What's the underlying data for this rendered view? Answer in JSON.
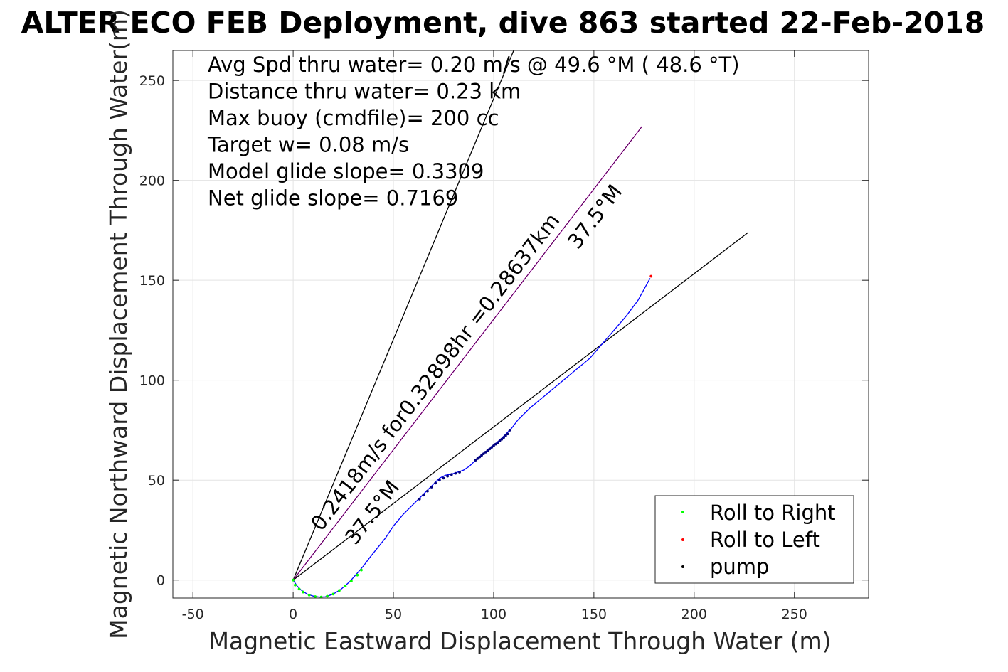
{
  "chart_data": {
    "type": "scatter",
    "title": "ALTER ECO FEB Deployment, dive 863 started 22-Feb-2018",
    "xlabel": "Magnetic Eastward Displacement Through Water (m)",
    "ylabel": "Magnetic Northward Displacement Through Water(m)",
    "xlim": [
      -60,
      287
    ],
    "ylim": [
      -9,
      265
    ],
    "xticks": [
      -50,
      0,
      50,
      100,
      150,
      200,
      250
    ],
    "yticks": [
      0,
      50,
      100,
      150,
      200,
      250
    ],
    "xtick_labels": [
      "-50",
      "0",
      "50",
      "100",
      "150",
      "200",
      "250"
    ],
    "ytick_labels": [
      "0",
      "50",
      "100",
      "150",
      "200",
      "250"
    ],
    "grid": true,
    "legend_position": "bottom-right",
    "colors": {
      "track": "#0000ff",
      "roll_right": "#00ff00",
      "roll_left": "#ff0000",
      "pump": "#000080",
      "heading_line": "#cc00cc",
      "ref_lines": "#000000"
    },
    "stats_text": [
      "Avg Spd thru water=  0.20 m/s @  49.6 °M ( 48.6 °T)",
      "Distance thru water=  0.23 km",
      "Max buoy (cmdfile)= 200 cc",
      "Target w= 0.08 m/s",
      "Model glide slope= 0.3309",
      "Net glide slope= 0.7169"
    ],
    "annotations": [
      {
        "text": "0.2418m/s for0.32898hr =0.28637km",
        "x": 14,
        "y": 24,
        "angle": -52.5
      },
      {
        "text": "37.5°M",
        "x": 31,
        "y": 17,
        "angle": -52.5
      },
      {
        "text": "37.5°M",
        "x": 142,
        "y": 165,
        "angle": -52.5
      }
    ],
    "ref_lines": [
      {
        "name": "steep",
        "x": [
          0,
          110
        ],
        "y": [
          0,
          265
        ]
      },
      {
        "name": "heading",
        "x": [
          0,
          174
        ],
        "y": [
          0,
          227
        ]
      },
      {
        "name": "shallow",
        "x": [
          0,
          227
        ],
        "y": [
          0,
          174
        ]
      }
    ],
    "track": {
      "x": [
        0,
        2,
        4,
        7,
        10,
        13,
        16,
        20,
        24,
        28,
        32,
        35,
        38,
        42,
        46,
        50,
        55,
        60,
        63,
        66,
        70,
        73,
        76,
        79,
        82,
        85,
        88,
        91,
        94,
        97,
        100,
        103,
        106,
        109,
        112,
        115,
        118,
        124,
        130,
        136,
        142,
        148,
        154,
        160,
        166,
        172,
        178
      ],
      "y": [
        0,
        -3,
        -5,
        -7,
        -8,
        -8.5,
        -8.4,
        -7,
        -4.5,
        -1,
        3.5,
        7,
        11,
        16,
        21,
        27,
        33,
        38,
        41,
        44,
        48,
        51,
        52.5,
        53,
        54,
        55,
        57,
        60,
        62.5,
        65,
        67.5,
        70,
        73,
        76,
        80,
        83,
        86,
        91,
        96,
        101,
        106,
        111,
        118,
        125,
        132,
        140,
        151
      ]
    },
    "series": [
      {
        "name": "Roll to Right",
        "x": [
          0,
          1,
          3,
          5,
          8,
          11,
          14,
          17,
          20,
          23,
          26,
          29,
          32,
          34
        ],
        "y": [
          0,
          -2.5,
          -4.5,
          -6,
          -7.5,
          -8.3,
          -8.5,
          -8.1,
          -7,
          -5.2,
          -3,
          -0.5,
          2.5,
          5
        ]
      },
      {
        "name": "Roll to Left",
        "x": [
          178.5
        ],
        "y": [
          152
        ]
      },
      {
        "name": "pump",
        "x": [
          63,
          65,
          67,
          69,
          71,
          73,
          75,
          77,
          79,
          81,
          83,
          91,
          92,
          93,
          94,
          95,
          96,
          97,
          98,
          99,
          100,
          101,
          102,
          103,
          104,
          105,
          106,
          107,
          108
        ],
        "y": [
          40.5,
          42.5,
          44.5,
          46.5,
          48.5,
          50,
          51,
          52,
          52.8,
          53.4,
          54,
          60,
          60.8,
          61.6,
          62.4,
          63.2,
          64,
          64.8,
          65.6,
          66.4,
          67.2,
          68,
          68.8,
          69.6,
          70.4,
          71.3,
          72.2,
          73.1,
          75
        ]
      }
    ]
  }
}
